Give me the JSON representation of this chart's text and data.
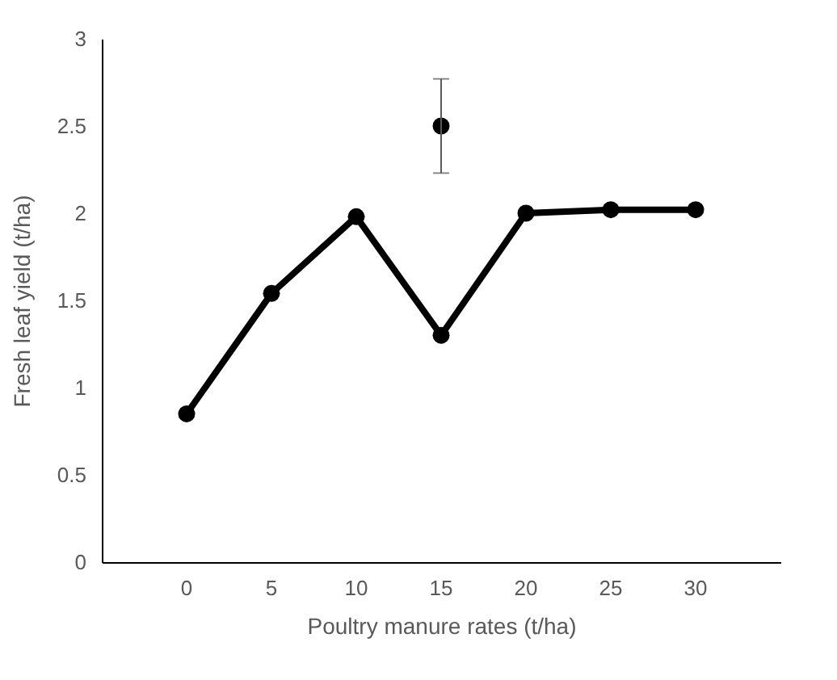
{
  "chart_data": {
    "type": "line",
    "xlabel": "Poultry manure rates (t/ha)",
    "ylabel": "Fresh leaf yield (t/ha)",
    "categories": [
      "0",
      "5",
      "10",
      "15",
      "20",
      "25",
      "30"
    ],
    "series": [
      {
        "color": "#000000",
        "values": [
          0.85,
          1.54,
          1.98,
          1.3,
          2.0,
          2.02,
          2.02
        ]
      },
      {
        "type": "scatter",
        "color": "#000000",
        "x": [
          "15"
        ],
        "values": [
          2.5
        ],
        "errors": [
          [
            2.23,
            2.77
          ]
        ]
      }
    ],
    "ylim": [
      0,
      3
    ],
    "yticks": [
      0,
      0.5,
      1,
      1.5,
      2,
      2.5,
      3
    ],
    "marker": "circle",
    "line_style": "solid",
    "grid": false
  }
}
